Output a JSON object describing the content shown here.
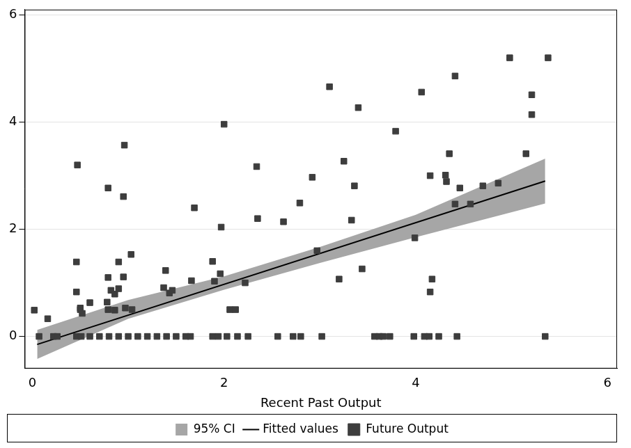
{
  "chart_data": {
    "type": "scatter",
    "x_label": "Recent Past Output",
    "xlim": [
      -0.08,
      6.1
    ],
    "xticks": [
      0,
      2,
      4,
      6
    ],
    "ylim": [
      -0.6,
      6.1
    ],
    "yticks": [
      0,
      2,
      4,
      6
    ],
    "grid": "y",
    "legend": "bottom",
    "series": [
      {
        "name": "95% CI",
        "type": "area",
        "color": "#a6a6a6",
        "x": [
          0.05,
          1,
          2,
          3,
          4,
          5.35
        ],
        "lower": [
          -0.42,
          0.33,
          0.87,
          1.37,
          1.85,
          2.48
        ],
        "upper": [
          0.12,
          0.68,
          1.12,
          1.67,
          2.27,
          3.32
        ]
      },
      {
        "name": "Fitted values",
        "type": "line",
        "color": "#000000",
        "line_style": "solid",
        "x": [
          0.05,
          5.35
        ],
        "values": [
          -0.15,
          2.9
        ]
      },
      {
        "name": "Future Output",
        "type": "scatter",
        "marker": "square",
        "color": "#3d3d3d",
        "x": [
          0.02,
          0.16,
          0.46,
          0.46,
          0.47,
          0.5,
          0.5,
          0.52,
          0.6,
          0.78,
          0.79,
          0.79,
          0.79,
          0.82,
          0.86,
          0.86,
          0.9,
          0.9,
          0.95,
          0.95,
          0.96,
          0.97,
          1.03,
          1.04,
          1.37,
          1.39,
          1.43,
          1.46,
          1.66,
          1.69,
          1.88,
          1.9,
          1.96,
          1.97,
          2.0,
          2.06,
          2.12,
          2.22,
          2.34,
          2.35,
          2.62,
          2.79,
          2.92,
          2.97,
          3.1,
          3.2,
          3.25,
          3.33,
          3.36,
          3.4,
          3.44,
          3.79,
          3.99,
          4.06,
          4.15,
          4.15,
          4.17,
          4.31,
          4.32,
          4.35,
          4.41,
          4.41,
          4.46,
          4.57,
          4.7,
          4.86,
          4.98,
          5.15,
          5.21,
          5.21,
          5.38,
          0.07,
          0.22,
          0.26,
          0.46,
          0.51,
          0.6,
          0.7,
          0.8,
          0.9,
          1.0,
          1.1,
          1.2,
          1.3,
          1.4,
          1.5,
          1.6,
          1.65,
          1.88,
          1.94,
          2.03,
          2.14,
          2.25,
          2.56,
          2.72,
          2.8,
          3.02,
          3.57,
          3.62,
          3.66,
          3.73,
          3.98,
          4.09,
          4.14,
          4.24,
          4.43,
          5.35
        ],
        "values": [
          0.49,
          0.33,
          1.39,
          0.83,
          3.2,
          0.5,
          0.53,
          0.43,
          0.63,
          0.64,
          1.1,
          2.77,
          0.5,
          0.86,
          0.79,
          0.49,
          0.89,
          1.39,
          1.11,
          2.61,
          3.57,
          0.53,
          1.53,
          0.5,
          0.91,
          1.23,
          0.81,
          0.86,
          1.04,
          2.4,
          1.4,
          1.03,
          1.17,
          2.04,
          3.96,
          0.5,
          0.5,
          1.0,
          3.17,
          2.2,
          2.14,
          2.49,
          2.97,
          1.6,
          4.66,
          1.07,
          3.27,
          2.17,
          2.81,
          4.27,
          1.26,
          3.83,
          1.84,
          4.56,
          3.0,
          0.83,
          1.07,
          3.01,
          2.89,
          3.41,
          2.47,
          4.86,
          2.77,
          2.47,
          2.81,
          2.86,
          5.2,
          3.41,
          4.51,
          4.14,
          5.2,
          0,
          0,
          0,
          0,
          0,
          0,
          0,
          0,
          0,
          0,
          0,
          0,
          0,
          0,
          0,
          0,
          0,
          0,
          0,
          0,
          0,
          0,
          0,
          0,
          0,
          0,
          0,
          0,
          0,
          0,
          0,
          0,
          0,
          0,
          0,
          0
        ]
      }
    ]
  }
}
